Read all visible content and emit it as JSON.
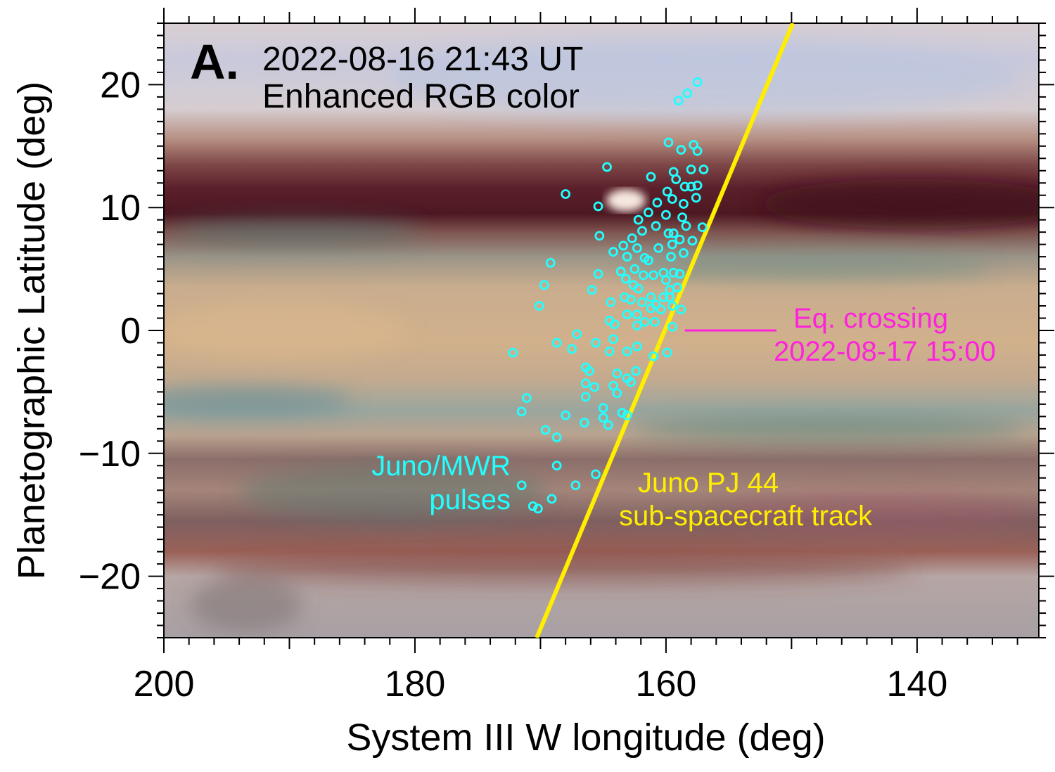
{
  "chart_data": {
    "type": "scatter",
    "panel_label": "A.",
    "title_lines": [
      "2022-08-16 21:43 UT",
      "Enhanced RGB color"
    ],
    "xlabel": "System III W longitude (deg)",
    "ylabel": "Planetographic Latitude (deg)",
    "xlim": [
      200,
      130.3
    ],
    "ylim": [
      -25,
      25
    ],
    "xticks": [
      200,
      180,
      160,
      140
    ],
    "xtick_labels": [
      "200",
      "180",
      "160",
      "140"
    ],
    "yticks": [
      20,
      10,
      0,
      -10,
      -20
    ],
    "ytick_labels": [
      "20",
      "10",
      "0",
      "−10",
      "−20"
    ],
    "background": "Jupiter enhanced RGB color map",
    "colors": {
      "pulses": "#22ffff",
      "track": "#ffee00",
      "crossing": "#ff22dd"
    },
    "track": {
      "name_lines": [
        "Juno PJ 44",
        "sub-spacecraft track"
      ],
      "points": [
        [
          170.3,
          -25
        ],
        [
          149.9,
          25
        ]
      ]
    },
    "equator_crossing": {
      "label_lines": [
        "Eq. crossing",
        "2022-08-17 15:00"
      ],
      "lat": 0,
      "lon_range": [
        158.5,
        151.2
      ]
    },
    "pulses": {
      "name_lines": [
        "Juno/MWR",
        "pulses"
      ],
      "points": [
        [
          157.5,
          20.2
        ],
        [
          158.3,
          19.3
        ],
        [
          159.0,
          18.7
        ],
        [
          159.8,
          15.3
        ],
        [
          158.8,
          14.7
        ],
        [
          157.8,
          15.1
        ],
        [
          157.5,
          14.6
        ],
        [
          164.7,
          13.3
        ],
        [
          161.2,
          12.5
        ],
        [
          159.4,
          12.9
        ],
        [
          158.0,
          13.1
        ],
        [
          157.0,
          13.1
        ],
        [
          159.2,
          12.3
        ],
        [
          158.5,
          11.7
        ],
        [
          158.0,
          11.7
        ],
        [
          157.5,
          11.8
        ],
        [
          168.0,
          11.1
        ],
        [
          165.4,
          10.1
        ],
        [
          159.9,
          11.3
        ],
        [
          159.5,
          10.7
        ],
        [
          158.6,
          10.3
        ],
        [
          157.6,
          10.8
        ],
        [
          160.7,
          10.4
        ],
        [
          161.4,
          9.6
        ],
        [
          160.0,
          9.4
        ],
        [
          158.7,
          9.2
        ],
        [
          162.2,
          9.0
        ],
        [
          160.8,
          8.5
        ],
        [
          158.4,
          8.5
        ],
        [
          157.1,
          8.4
        ],
        [
          161.9,
          8.1
        ],
        [
          165.3,
          7.7
        ],
        [
          159.8,
          7.9
        ],
        [
          159.4,
          7.9
        ],
        [
          162.7,
          7.5
        ],
        [
          163.4,
          6.9
        ],
        [
          162.3,
          6.7
        ],
        [
          160.6,
          6.7
        ],
        [
          158.9,
          7.4
        ],
        [
          157.9,
          7.3
        ],
        [
          159.5,
          7.0
        ],
        [
          164.2,
          6.4
        ],
        [
          163.1,
          6.0
        ],
        [
          161.7,
          5.9
        ],
        [
          161.4,
          5.7
        ],
        [
          159.6,
          6.0
        ],
        [
          158.6,
          6.3
        ],
        [
          169.2,
          5.5
        ],
        [
          165.4,
          4.6
        ],
        [
          162.5,
          5.0
        ],
        [
          163.6,
          4.8
        ],
        [
          161.8,
          4.5
        ],
        [
          161.0,
          4.5
        ],
        [
          160.2,
          4.7
        ],
        [
          159.4,
          4.7
        ],
        [
          158.9,
          4.6
        ],
        [
          163.2,
          4.2
        ],
        [
          160.0,
          4.1
        ],
        [
          169.7,
          3.7
        ],
        [
          162.6,
          3.7
        ],
        [
          162.2,
          3.4
        ],
        [
          159.1,
          3.5
        ],
        [
          165.9,
          3.3
        ],
        [
          159.7,
          3.3
        ],
        [
          170.1,
          2.0
        ],
        [
          164.4,
          2.3
        ],
        [
          163.3,
          2.7
        ],
        [
          162.8,
          2.5
        ],
        [
          161.9,
          2.3
        ],
        [
          161.2,
          2.7
        ],
        [
          160.2,
          2.7
        ],
        [
          159.7,
          2.7
        ],
        [
          161.2,
          1.8
        ],
        [
          160.8,
          2.1
        ],
        [
          160.4,
          1.7
        ],
        [
          159.5,
          2.0
        ],
        [
          158.8,
          1.7
        ],
        [
          163.1,
          1.3
        ],
        [
          162.3,
          1.3
        ],
        [
          164.5,
          0.8
        ],
        [
          164.1,
          0.5
        ],
        [
          161.7,
          0.7
        ],
        [
          160.9,
          0.7
        ],
        [
          162.3,
          0.4
        ],
        [
          159.5,
          0.3
        ],
        [
          167.1,
          -0.3
        ],
        [
          172.2,
          -1.8
        ],
        [
          168.7,
          -1.0
        ],
        [
          167.5,
          -1.5
        ],
        [
          165.6,
          -1.0
        ],
        [
          164.2,
          -0.7
        ],
        [
          164.5,
          -1.7
        ],
        [
          163.1,
          -1.7
        ],
        [
          162.3,
          -1.3
        ],
        [
          161.0,
          -2.1
        ],
        [
          159.9,
          -1.8
        ],
        [
          166.4,
          -3.0
        ],
        [
          166.1,
          -3.3
        ],
        [
          163.9,
          -3.5
        ],
        [
          163.1,
          -3.9
        ],
        [
          162.8,
          -4.2
        ],
        [
          162.4,
          -3.3
        ],
        [
          166.4,
          -4.3
        ],
        [
          165.7,
          -4.6
        ],
        [
          164.2,
          -4.5
        ],
        [
          163.9,
          -5.1
        ],
        [
          166.4,
          -5.4
        ],
        [
          171.1,
          -5.5
        ],
        [
          171.5,
          -6.6
        ],
        [
          168.0,
          -6.9
        ],
        [
          166.5,
          -7.5
        ],
        [
          165.0,
          -6.3
        ],
        [
          165.0,
          -7.1
        ],
        [
          164.6,
          -7.7
        ],
        [
          163.5,
          -6.7
        ],
        [
          163.1,
          -6.9
        ],
        [
          169.6,
          -8.1
        ],
        [
          168.7,
          -8.7
        ],
        [
          168.7,
          -11.0
        ],
        [
          165.6,
          -11.7
        ],
        [
          167.2,
          -12.6
        ],
        [
          171.5,
          -12.6
        ],
        [
          169.1,
          -13.7
        ],
        [
          170.6,
          -14.3
        ],
        [
          170.2,
          -14.5
        ]
      ]
    }
  }
}
